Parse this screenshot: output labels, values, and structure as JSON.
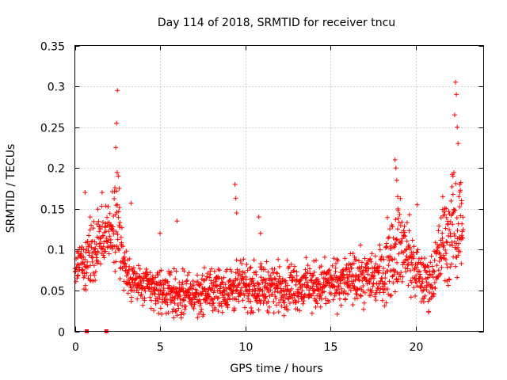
{
  "chart_data": {
    "type": "scatter",
    "title": "Day 114 of 2018, SRMTID for receiver tncu",
    "xlabel": "GPS time / hours",
    "ylabel": "SRMTID / TECUs",
    "xlim": [
      0,
      24
    ],
    "ylim": [
      0,
      0.35
    ],
    "xticks": [
      0,
      5,
      10,
      15,
      20
    ],
    "xtick_labels": [
      "0",
      "5",
      "10",
      "15",
      "20"
    ],
    "yticks": [
      0,
      0.05,
      0.1,
      0.15,
      0.2,
      0.25,
      0.3,
      0.35
    ],
    "ytick_labels": [
      "0",
      "0.05",
      "0.1",
      "0.15",
      "0.2",
      "0.25",
      "0.3",
      "0.35"
    ],
    "grid": true,
    "marker": "+",
    "color": "#ff0000",
    "series": [
      {
        "name": "SRMTID",
        "profile_x": [
          0.0,
          0.5,
          1.0,
          1.5,
          2.0,
          2.5,
          3.0,
          3.5,
          4.0,
          5.0,
          6.0,
          7.0,
          8.0,
          9.0,
          10.0,
          11.0,
          12.0,
          13.0,
          14.0,
          15.0,
          16.0,
          17.0,
          18.0,
          18.5,
          19.0,
          19.5,
          20.0,
          20.5,
          21.0,
          21.5,
          22.0,
          22.5,
          22.8
        ],
        "profile_mean": [
          0.085,
          0.085,
          0.095,
          0.11,
          0.12,
          0.13,
          0.07,
          0.06,
          0.055,
          0.05,
          0.045,
          0.045,
          0.05,
          0.052,
          0.055,
          0.055,
          0.055,
          0.055,
          0.055,
          0.058,
          0.062,
          0.065,
          0.07,
          0.09,
          0.11,
          0.095,
          0.075,
          0.06,
          0.065,
          0.1,
          0.12,
          0.13,
          0.14
        ],
        "profile_spread": [
          0.02,
          0.02,
          0.025,
          0.03,
          0.03,
          0.04,
          0.02,
          0.018,
          0.018,
          0.018,
          0.018,
          0.018,
          0.018,
          0.02,
          0.02,
          0.02,
          0.02,
          0.02,
          0.02,
          0.02,
          0.02,
          0.022,
          0.025,
          0.035,
          0.04,
          0.03,
          0.025,
          0.02,
          0.025,
          0.035,
          0.04,
          0.045,
          0.045
        ],
        "samples_per_hour": 75,
        "peaks": [
          {
            "x": 0.6,
            "y": 0.17
          },
          {
            "x": 0.9,
            "y": 0.14
          },
          {
            "x": 1.6,
            "y": 0.17
          },
          {
            "x": 2.4,
            "y": 0.225
          },
          {
            "x": 2.45,
            "y": 0.255
          },
          {
            "x": 2.5,
            "y": 0.295
          },
          {
            "x": 2.55,
            "y": 0.19
          },
          {
            "x": 2.6,
            "y": 0.175
          },
          {
            "x": 3.3,
            "y": 0.157
          },
          {
            "x": 5.0,
            "y": 0.12
          },
          {
            "x": 6.0,
            "y": 0.135
          },
          {
            "x": 9.4,
            "y": 0.18
          },
          {
            "x": 9.45,
            "y": 0.163
          },
          {
            "x": 9.5,
            "y": 0.145
          },
          {
            "x": 10.8,
            "y": 0.14
          },
          {
            "x": 10.9,
            "y": 0.12
          },
          {
            "x": 18.8,
            "y": 0.21
          },
          {
            "x": 18.85,
            "y": 0.2
          },
          {
            "x": 18.9,
            "y": 0.185
          },
          {
            "x": 18.95,
            "y": 0.165
          },
          {
            "x": 20.1,
            "y": 0.155
          },
          {
            "x": 21.6,
            "y": 0.165
          },
          {
            "x": 21.8,
            "y": 0.15
          },
          {
            "x": 22.2,
            "y": 0.19
          },
          {
            "x": 22.3,
            "y": 0.265
          },
          {
            "x": 22.35,
            "y": 0.305
          },
          {
            "x": 22.4,
            "y": 0.29
          },
          {
            "x": 22.45,
            "y": 0.25
          },
          {
            "x": 22.5,
            "y": 0.23
          },
          {
            "x": 22.6,
            "y": 0.18
          },
          {
            "x": 22.7,
            "y": 0.16
          }
        ],
        "zero_points_x": [
          0.7,
          1.85
        ]
      }
    ]
  }
}
